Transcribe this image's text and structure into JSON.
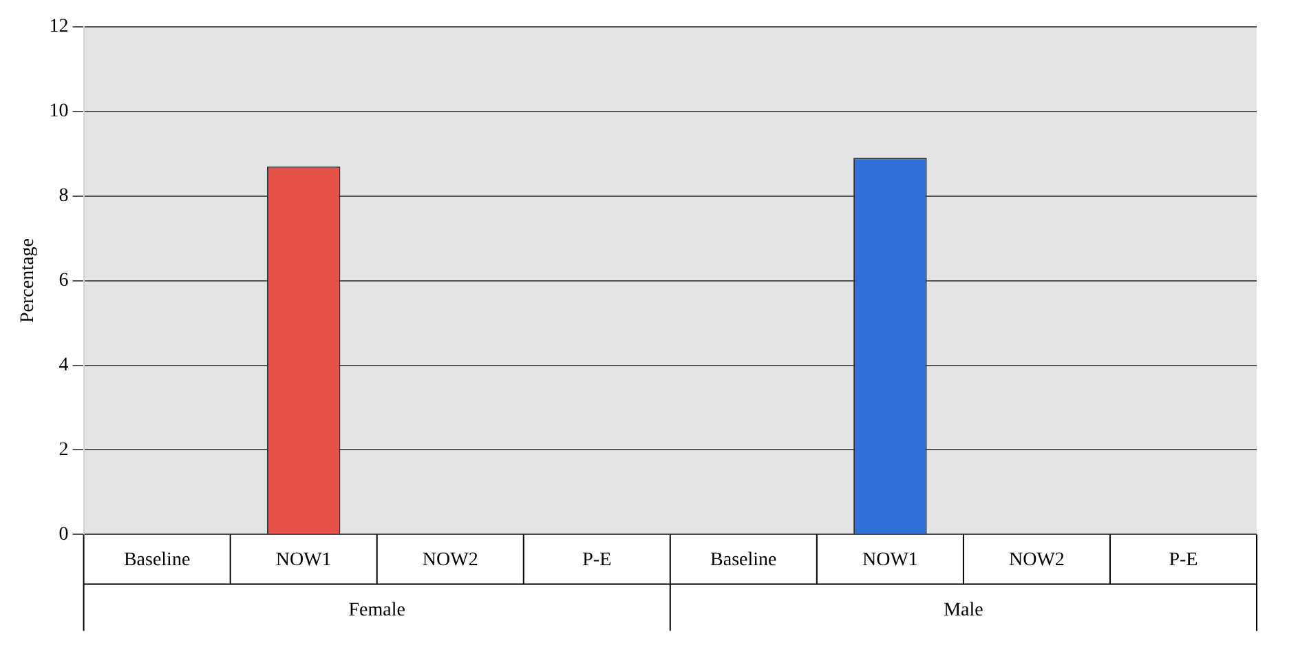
{
  "chart_data": {
    "type": "bar",
    "ylabel": "Percentage",
    "categories": [
      "Baseline",
      "NOW1",
      "NOW2",
      "P-E",
      "Baseline",
      "NOW1",
      "NOW2",
      "P-E"
    ],
    "values": [
      0,
      8.7,
      0,
      0,
      0,
      8.9,
      0,
      0
    ],
    "colors": [
      "#e8504a",
      "#e8504a",
      "#e8504a",
      "#e8504a",
      "#2e6fd8",
      "#2e6fd8",
      "#2e6fd8",
      "#2e6fd8"
    ],
    "ylim": [
      0,
      12
    ],
    "yticks": [
      0,
      2,
      4,
      6,
      8,
      10,
      12
    ],
    "grid": "y",
    "legend": false,
    "annotations": [
      "Female",
      "Male"
    ]
  }
}
